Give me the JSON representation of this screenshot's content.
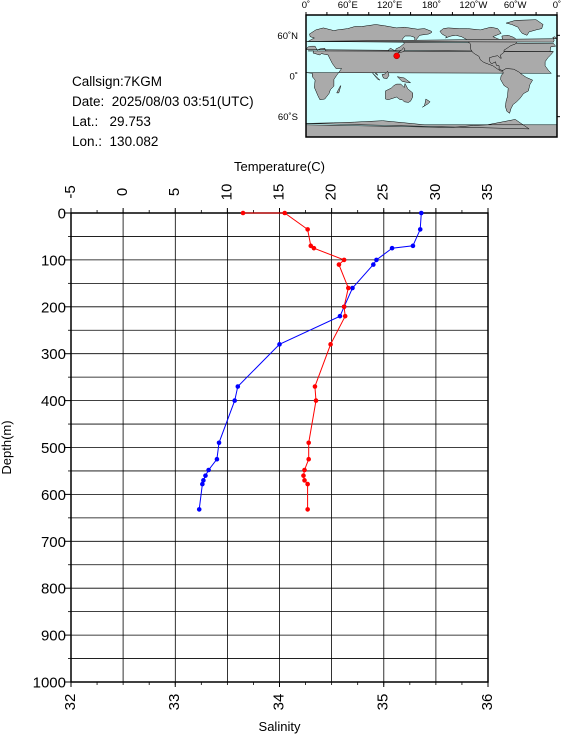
{
  "info": {
    "callsign_label": "Callsign:",
    "callsign": "7KGM",
    "date_label": "Date:",
    "date": "2025/08/03 03:51(UTC)",
    "lat_label": "Lat.:",
    "lat": "29.753",
    "lon_label": "Lon.:",
    "lon": "130.082"
  },
  "map": {
    "lon_labels": [
      "0˚",
      "60˚E",
      "120˚E",
      "180˚",
      "120˚W",
      "60˚W",
      "0˚"
    ],
    "lat_labels": [
      "60˚N",
      "0˚",
      "60˚S"
    ],
    "ocean_color": "#ccffff",
    "land_color": "#aaaaaa",
    "station": {
      "lat": 29.753,
      "lon": 130.082,
      "color": "#ff0000"
    }
  },
  "chart_data": {
    "type": "line",
    "temperature_axis": {
      "label": "Temperature(C)",
      "range": [
        -5,
        35
      ],
      "ticks": [
        "-5",
        "0",
        "5",
        "10",
        "15",
        "20",
        "25",
        "30",
        "35"
      ]
    },
    "salinity_axis": {
      "label": "Salinity",
      "range": [
        32,
        36
      ],
      "ticks": [
        "32",
        "33",
        "34",
        "35",
        "36"
      ]
    },
    "depth_axis": {
      "label": "Depth(m)",
      "range": [
        0,
        1000
      ],
      "reversed": true,
      "ticks": [
        "0",
        "100",
        "200",
        "300",
        "400",
        "500",
        "600",
        "700",
        "800",
        "900",
        "1000"
      ]
    },
    "grid": true,
    "series": [
      {
        "variable": "temperature",
        "color": "#0000ff",
        "points": [
          [
            28.6,
            0
          ],
          [
            28.5,
            35
          ],
          [
            27.8,
            70
          ],
          [
            25.8,
            75
          ],
          [
            24.3,
            100
          ],
          [
            24.0,
            110
          ],
          [
            22.0,
            160
          ],
          [
            21.2,
            200
          ],
          [
            20.8,
            220
          ],
          [
            15.0,
            280
          ],
          [
            11.0,
            370
          ],
          [
            10.7,
            400
          ],
          [
            9.2,
            490
          ],
          [
            9.0,
            525
          ],
          [
            8.2,
            548
          ],
          [
            7.9,
            560
          ],
          [
            7.7,
            570
          ],
          [
            7.6,
            578
          ],
          [
            7.3,
            632
          ]
        ]
      },
      {
        "variable": "salinity",
        "color": "#ff0000",
        "points": [
          [
            33.65,
            0
          ],
          [
            34.05,
            0
          ],
          [
            34.27,
            35
          ],
          [
            34.3,
            70
          ],
          [
            34.33,
            75
          ],
          [
            34.62,
            100
          ],
          [
            34.57,
            110
          ],
          [
            34.66,
            160
          ],
          [
            34.62,
            200
          ],
          [
            34.63,
            220
          ],
          [
            34.49,
            280
          ],
          [
            34.34,
            370
          ],
          [
            34.35,
            400
          ],
          [
            34.28,
            490
          ],
          [
            34.28,
            525
          ],
          [
            34.24,
            548
          ],
          [
            34.23,
            560
          ],
          [
            34.24,
            570
          ],
          [
            34.27,
            578
          ],
          [
            34.27,
            632
          ]
        ]
      }
    ]
  }
}
